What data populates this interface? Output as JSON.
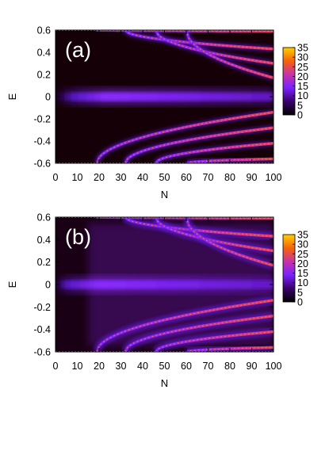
{
  "chart_data": [
    {
      "type": "heatmap",
      "panel_label": "(a)",
      "xlabel": "N",
      "ylabel": "E",
      "xlim": [
        0,
        100
      ],
      "ylim": [
        -0.6,
        0.6
      ],
      "x_ticks": [
        "0",
        "10",
        "20",
        "30",
        "40",
        "50",
        "60",
        "70",
        "80",
        "90",
        "100"
      ],
      "y_ticks": [
        "0.6",
        "0.4",
        "0.2",
        "0",
        "-0.2",
        "-0.4",
        "-0.6"
      ],
      "colorbar": {
        "range": [
          0,
          35
        ],
        "ticks": [
          "35",
          "30",
          "25",
          "20",
          "15",
          "10",
          "5",
          "0"
        ]
      },
      "colormap": [
        "#000000",
        "#3a0068",
        "#7a22ff",
        "#c832a8",
        "#f5620a",
        "#ffd000"
      ],
      "background": "#160008",
      "features": {
        "central_band": {
          "E": 0.0,
          "from_N": 8,
          "intensity": "broad, moderate"
        },
        "branches": [
          {
            "sign": 1,
            "onset_N": 19,
            "E_at_100": 0.59
          },
          {
            "sign": 1,
            "onset_N": 32,
            "E_at_100": 0.43
          },
          {
            "sign": 1,
            "onset_N": 46,
            "E_at_100": 0.3
          },
          {
            "sign": 1,
            "onset_N": 60,
            "E_at_100": 0.17
          },
          {
            "sign": -1,
            "onset_N": 19,
            "E_at_100": -0.14
          },
          {
            "sign": -1,
            "onset_N": 32,
            "E_at_100": -0.28
          },
          {
            "sign": -1,
            "onset_N": 46,
            "E_at_100": -0.42
          },
          {
            "sign": -1,
            "onset_N": 60,
            "E_at_100": -0.56
          }
        ]
      }
    },
    {
      "type": "heatmap",
      "panel_label": "(b)",
      "xlabel": "N",
      "ylabel": "E",
      "xlim": [
        0,
        100
      ],
      "ylim": [
        -0.6,
        0.6
      ],
      "x_ticks": [
        "0",
        "10",
        "20",
        "30",
        "40",
        "50",
        "60",
        "70",
        "80",
        "90",
        "100"
      ],
      "y_ticks": [
        "0.6",
        "0.4",
        "0.2",
        "0",
        "-0.2",
        "-0.4",
        "-0.6"
      ],
      "colorbar": {
        "range": [
          0,
          35
        ],
        "ticks": [
          "35",
          "30",
          "25",
          "20",
          "15",
          "10",
          "5",
          "0"
        ]
      },
      "colormap": [
        "#000000",
        "#3a0068",
        "#7a22ff",
        "#c832a8",
        "#f5620a",
        "#ffd000"
      ],
      "background": "#1a0014",
      "features": {
        "central_band": {
          "E": 0.0,
          "from_N": 5,
          "intensity": "broad, moderate"
        },
        "branches": [
          {
            "sign": 1,
            "onset_N": 19,
            "E_at_100": 0.59
          },
          {
            "sign": 1,
            "onset_N": 32,
            "E_at_100": 0.43
          },
          {
            "sign": 1,
            "onset_N": 46,
            "E_at_100": 0.3
          },
          {
            "sign": 1,
            "onset_N": 60,
            "E_at_100": 0.17
          },
          {
            "sign": -1,
            "onset_N": 19,
            "E_at_100": -0.14
          },
          {
            "sign": -1,
            "onset_N": 32,
            "E_at_100": -0.28
          },
          {
            "sign": -1,
            "onset_N": 46,
            "E_at_100": -0.42
          },
          {
            "sign": -1,
            "onset_N": 60,
            "E_at_100": -0.56
          }
        ]
      }
    }
  ]
}
